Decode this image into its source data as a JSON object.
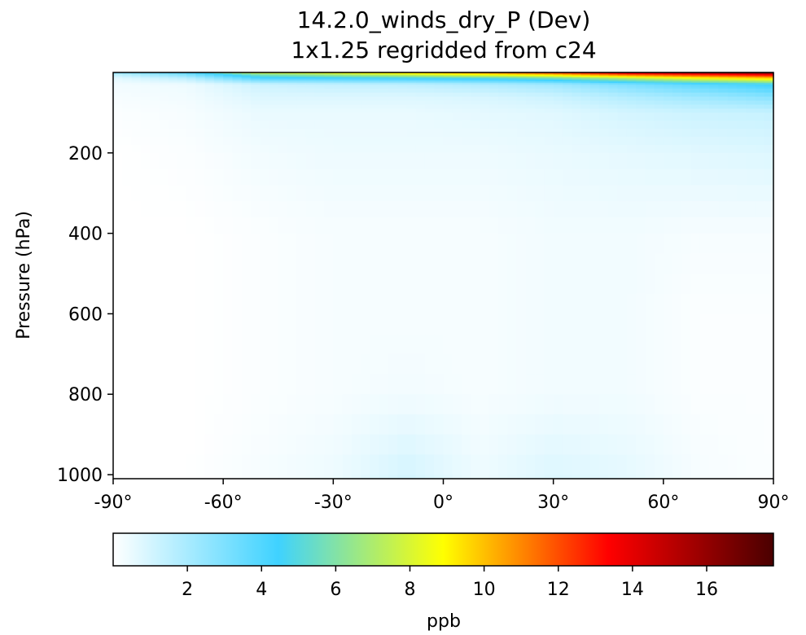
{
  "chart_data": {
    "type": "heatmap",
    "title": "14.2.0_winds_dry_P (Dev)",
    "subtitle": "1x1.25 regridded from c24",
    "xlabel": "",
    "ylabel": "Pressure (hPa)",
    "x_axis": {
      "range": [
        -90,
        90
      ],
      "ticks": [
        -90,
        -60,
        -30,
        0,
        30,
        60,
        90
      ],
      "tick_labels": [
        "-90°",
        "-60°",
        "-30°",
        "0°",
        "30°",
        "60°",
        "90°"
      ]
    },
    "y_axis": {
      "range": [
        1010,
        0
      ],
      "inverted": true,
      "ticks": [
        200,
        400,
        600,
        800,
        1000
      ],
      "tick_labels": [
        "200",
        "400",
        "600",
        "800",
        "1000"
      ]
    },
    "colorbar": {
      "label": "ppb",
      "range": [
        0,
        17.8
      ],
      "ticks": [
        2,
        4,
        6,
        8,
        10,
        12,
        14,
        16
      ],
      "tick_labels": [
        "2",
        "4",
        "6",
        "8",
        "10",
        "12",
        "14",
        "16"
      ],
      "colormap": [
        "#ffffff",
        "#3fd2ff",
        "#ffff00",
        "#ff0000",
        "#4a0000"
      ]
    },
    "field_profiles": [
      {
        "lat": -90,
        "pressure": [
          0,
          5,
          15,
          30,
          60,
          100,
          200,
          400,
          600,
          800,
          1000
        ],
        "value": [
          3.0,
          1.5,
          0.6,
          0.3,
          0.2,
          0.1,
          0.0,
          0.0,
          0.0,
          0.0,
          0.0
        ]
      },
      {
        "lat": -70,
        "pressure": [
          0,
          5,
          15,
          30,
          60,
          100,
          200,
          400,
          600,
          800,
          1000
        ],
        "value": [
          4.2,
          3.0,
          1.5,
          0.4,
          0.3,
          0.2,
          0.1,
          0.0,
          0.0,
          0.0,
          0.0
        ]
      },
      {
        "lat": -50,
        "pressure": [
          0,
          5,
          15,
          30,
          60,
          100,
          200,
          400,
          600,
          800,
          1000
        ],
        "value": [
          8.5,
          6.0,
          4.0,
          1.2,
          0.8,
          0.5,
          0.3,
          0.1,
          0.1,
          0.1,
          0.2
        ]
      },
      {
        "lat": -30,
        "pressure": [
          0,
          5,
          15,
          30,
          60,
          100,
          200,
          400,
          600,
          800,
          1000
        ],
        "value": [
          9.0,
          7.0,
          4.2,
          1.4,
          0.8,
          0.5,
          0.4,
          0.2,
          0.2,
          0.2,
          0.4
        ]
      },
      {
        "lat": -10,
        "pressure": [
          0,
          5,
          15,
          30,
          60,
          100,
          200,
          400,
          600,
          800,
          1000
        ],
        "value": [
          10.0,
          8.0,
          4.5,
          1.5,
          0.8,
          0.5,
          0.4,
          0.2,
          0.2,
          0.3,
          1.0
        ]
      },
      {
        "lat": 10,
        "pressure": [
          0,
          5,
          15,
          30,
          60,
          100,
          200,
          400,
          600,
          800,
          1000
        ],
        "value": [
          11.0,
          9.0,
          4.8,
          1.8,
          0.9,
          0.6,
          0.4,
          0.2,
          0.2,
          0.2,
          0.4
        ]
      },
      {
        "lat": 30,
        "pressure": [
          0,
          5,
          15,
          30,
          60,
          100,
          200,
          400,
          600,
          800,
          1000
        ],
        "value": [
          13.0,
          10.0,
          5.5,
          2.2,
          1.2,
          0.7,
          0.5,
          0.3,
          0.3,
          0.3,
          0.8
        ]
      },
      {
        "lat": 50,
        "pressure": [
          0,
          5,
          15,
          30,
          60,
          100,
          200,
          400,
          600,
          800,
          1000
        ],
        "value": [
          15.0,
          12.0,
          7.0,
          3.0,
          1.8,
          1.0,
          0.6,
          0.3,
          0.3,
          0.3,
          0.6
        ]
      },
      {
        "lat": 70,
        "pressure": [
          0,
          5,
          15,
          30,
          60,
          100,
          200,
          400,
          600,
          800,
          1000
        ],
        "value": [
          16.5,
          13.0,
          8.5,
          3.8,
          2.3,
          1.2,
          0.7,
          0.2,
          0.1,
          0.1,
          0.2
        ]
      },
      {
        "lat": 90,
        "pressure": [
          0,
          5,
          15,
          30,
          60,
          100,
          200,
          400,
          600,
          800,
          1000
        ],
        "value": [
          17.5,
          14.0,
          9.5,
          4.5,
          2.8,
          1.3,
          0.8,
          0.2,
          0.1,
          0.1,
          0.1
        ]
      }
    ],
    "grid": false
  }
}
